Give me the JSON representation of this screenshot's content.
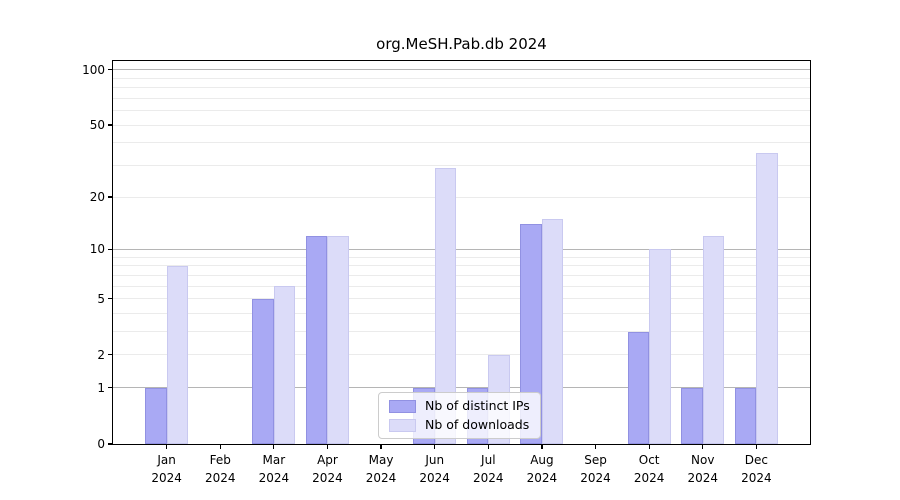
{
  "chart_data": {
    "type": "bar",
    "title": "org.MeSH.Pab.db 2024",
    "categories": [
      "Jan",
      "Feb",
      "Mar",
      "Apr",
      "May",
      "Jun",
      "Jul",
      "Aug",
      "Sep",
      "Oct",
      "Nov",
      "Dec"
    ],
    "category_year": "2024",
    "series": [
      {
        "name": "Nb of distinct IPs",
        "color": "#a9a9f4",
        "edge_color": "#9191e2",
        "values": [
          1,
          0,
          5,
          12,
          0,
          1,
          1,
          14,
          0,
          3,
          1,
          1
        ]
      },
      {
        "name": "Nb of downloads",
        "color": "#dcdcf9",
        "edge_color": "#c9c9f0",
        "values": [
          8,
          0,
          6,
          12,
          0,
          29,
          2,
          15,
          0,
          10,
          12,
          35
        ]
      }
    ],
    "y_ticks": [
      0,
      1,
      2,
      5,
      10,
      20,
      50,
      100
    ],
    "y_scale": "log10(value+1)",
    "ylim": [
      0,
      112
    ],
    "grid": {
      "major_lines": [
        1,
        10,
        100
      ],
      "minor_lines": [
        2,
        3,
        4,
        5,
        6,
        7,
        8,
        9,
        20,
        30,
        40,
        50,
        60,
        70,
        80,
        90
      ],
      "major_color": "#b5b5b5",
      "minor_color": "#ebebeb"
    },
    "legend": {
      "position": "inside-bottom-center"
    },
    "axis_color": "#000000",
    "background": "#ffffff"
  }
}
